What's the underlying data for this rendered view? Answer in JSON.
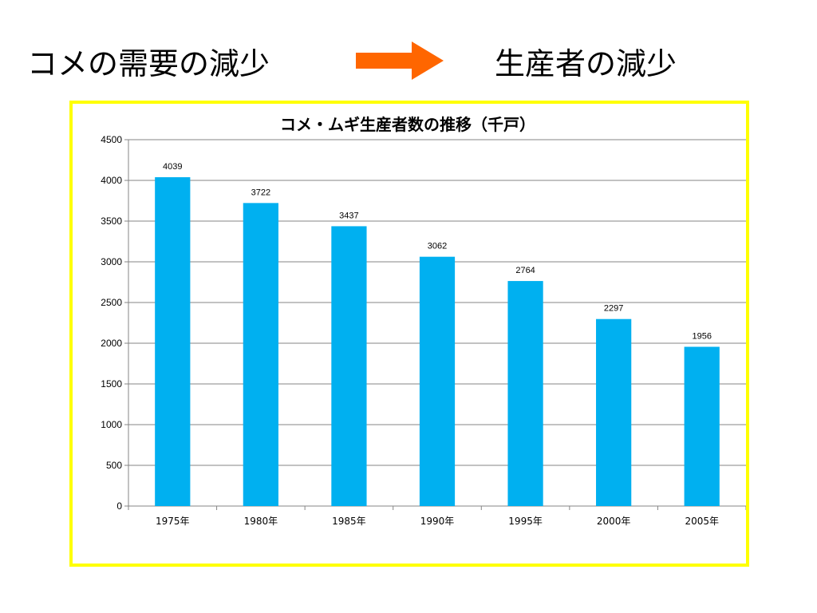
{
  "header": {
    "left_text": "コメの需要の減少",
    "right_text": "生産者の減少",
    "arrow_icon": "right-arrow-icon",
    "arrow_color": "#ff6600"
  },
  "frame_color": "#ffff00",
  "chart_data": {
    "type": "bar",
    "title": "コメ・ムギ生産者数の推移（千戸）",
    "xlabel": "",
    "ylabel": "",
    "categories": [
      "1975年",
      "1980年",
      "1985年",
      "1990年",
      "1995年",
      "2000年",
      "2005年"
    ],
    "values": [
      4039,
      3722,
      3437,
      3062,
      2764,
      2297,
      1956
    ],
    "data_labels": [
      "4039",
      "3722",
      "3437",
      "3062",
      "2764",
      "2297",
      "1956"
    ],
    "ylim": [
      0,
      4500
    ],
    "yticks": [
      0,
      500,
      1000,
      1500,
      2000,
      2500,
      3000,
      3500,
      4000,
      4500
    ],
    "ytick_labels": [
      "0",
      "500",
      "1000",
      "1500",
      "2000",
      "2500",
      "3000",
      "3500",
      "4000",
      "4500"
    ],
    "grid": true,
    "legend": "none",
    "bar_color": "#00b0f0"
  }
}
